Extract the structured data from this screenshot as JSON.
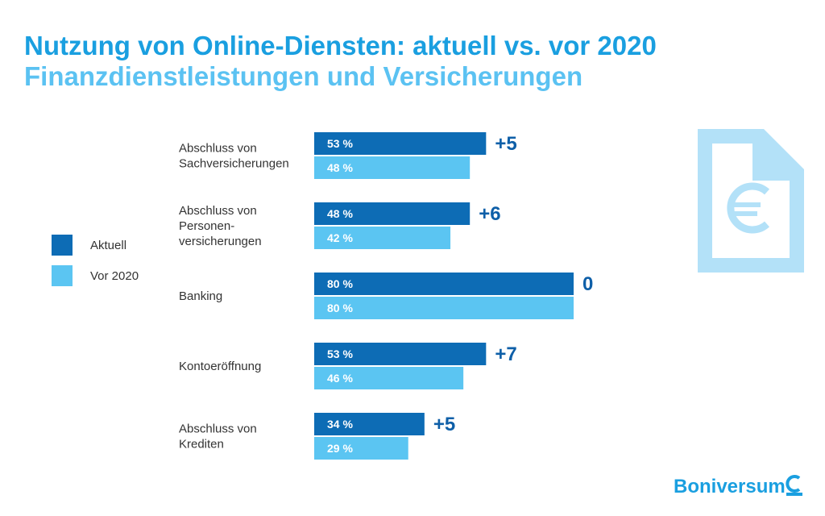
{
  "title": "Nutzung von Online-Diensten: aktuell vs. vor 2020",
  "subtitle": "Finanzdienstleistungen und Versicherungen",
  "brand": "Boniversum",
  "icons": [
    "euro-document-icon",
    "boniversum-logo-icon"
  ],
  "colors": {
    "aktuell": "#0d6cb5",
    "vor2020": "#5bc5f2",
    "diff": "#0e5fa8",
    "title": "#1a9fe0",
    "subtitle": "#5bc2f2",
    "icon": "#b3e1f8"
  },
  "chart_data": {
    "type": "bar",
    "orientation": "horizontal",
    "categories": [
      [
        "Abschluss von",
        "Sachversicherungen"
      ],
      [
        "Abschluss von",
        "Personen-",
        "versicherungen"
      ],
      [
        "Banking"
      ],
      [
        "Kontoeröffnung"
      ],
      [
        "Abschluss von",
        "Krediten"
      ]
    ],
    "series": [
      {
        "name": "Aktuell",
        "values": [
          53,
          48,
          80,
          53,
          34
        ],
        "labels": [
          "53 %",
          "48 %",
          "80 %",
          "53 %",
          "34 %"
        ]
      },
      {
        "name": "Vor 2020",
        "values": [
          48,
          42,
          80,
          46,
          29
        ],
        "labels": [
          "48 %",
          "42 %",
          "80 %",
          "46 %",
          "29 %"
        ]
      }
    ],
    "differences": [
      "+5",
      "+6",
      "0",
      "+7",
      "+5"
    ],
    "xlim": [
      0,
      80
    ],
    "grid": false,
    "legend_position": "left"
  }
}
